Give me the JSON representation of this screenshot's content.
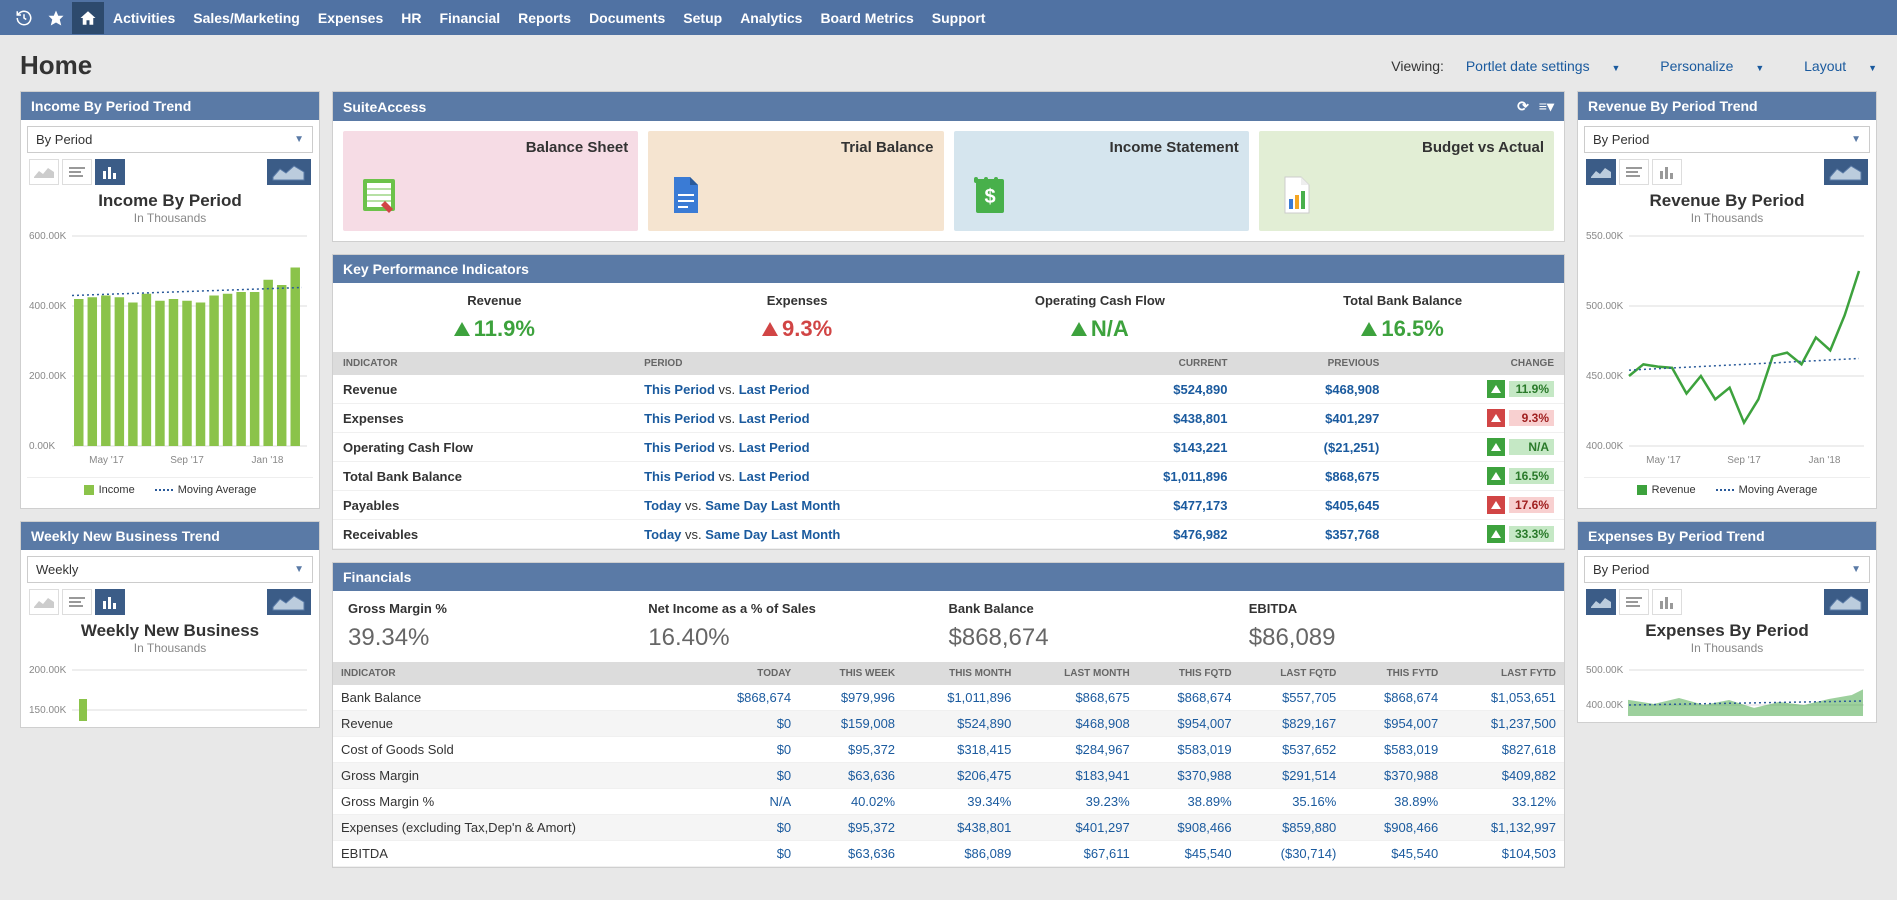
{
  "colors": {
    "topbar": "#5072a3",
    "header": "#5a7aa6",
    "link": "#1a5a9e",
    "green": "#3da23d",
    "red": "#d14545",
    "green_light": "#c5e8c5",
    "red_light": "#f8d0d0"
  },
  "topbar": {
    "menu": [
      "Activities",
      "Sales/Marketing",
      "Expenses",
      "HR",
      "Financial",
      "Reports",
      "Documents",
      "Setup",
      "Analytics",
      "Board Metrics",
      "Support"
    ]
  },
  "page": {
    "title": "Home",
    "viewing_label": "Viewing:",
    "viewing_value": "Portlet date settings",
    "personalize": "Personalize",
    "layout": "Layout"
  },
  "income": {
    "header": "Income By Period Trend",
    "dropdown": "By Period",
    "chart_title": "Income By Period",
    "chart_sub": "In Thousands",
    "y_tick": [
      "600.00K",
      "400.00K",
      "200.00K",
      "0.00K"
    ],
    "x_tick": [
      "May '17",
      "Sep '17",
      "Jan '18"
    ],
    "bars": [
      420,
      425,
      430,
      425,
      410,
      435,
      415,
      420,
      415,
      410,
      430,
      435,
      440,
      440,
      475,
      460,
      510
    ],
    "bar_color": "#8bc34a",
    "ma_color": "#2a5a9a",
    "ymax": 600,
    "legend": [
      {
        "type": "sq",
        "color": "#8bc34a",
        "label": "Income"
      },
      {
        "type": "line",
        "color": "#2a5a9a",
        "label": "Moving Average"
      }
    ]
  },
  "weekly": {
    "header": "Weekly New Business Trend",
    "dropdown": "Weekly",
    "chart_title": "Weekly New Business",
    "chart_sub": "In Thousands",
    "y_tick": [
      "200.00K",
      "150.00K"
    ]
  },
  "suite": {
    "header": "SuiteAccess",
    "tiles": [
      {
        "label": "Balance Sheet",
        "bg": "#f6dce5",
        "icon_bg": "#6cc24a",
        "icon_type": "sheet"
      },
      {
        "label": "Trial Balance",
        "bg": "#f5e4d0",
        "icon_bg": "#3a7bd5",
        "icon_type": "doc"
      },
      {
        "label": "Income Statement",
        "bg": "#d5e5ee",
        "icon_bg": "#48b04b",
        "icon_type": "dollar"
      },
      {
        "label": "Budget vs Actual",
        "bg": "#e2eed5",
        "icon_bg": "#fff",
        "icon_type": "chart"
      }
    ]
  },
  "kpi": {
    "header": "Key Performance Indicators",
    "summary": [
      {
        "label": "Revenue",
        "value": "11.9%",
        "color": "#3da23d",
        "dir": "up"
      },
      {
        "label": "Expenses",
        "value": "9.3%",
        "color": "#d14545",
        "dir": "up"
      },
      {
        "label": "Operating Cash Flow",
        "value": "N/A",
        "color": "#3da23d",
        "dir": "up"
      },
      {
        "label": "Total Bank Balance",
        "value": "16.5%",
        "color": "#3da23d",
        "dir": "up"
      }
    ],
    "cols": [
      "INDICATOR",
      "PERIOD",
      "CURRENT",
      "PREVIOUS",
      "CHANGE"
    ],
    "rows": [
      {
        "ind": "Revenue",
        "p1": "This Period",
        "p2": "Last Period",
        "cur": "$524,890",
        "prev": "$468,908",
        "chg": "11.9%",
        "good": true
      },
      {
        "ind": "Expenses",
        "p1": "This Period",
        "p2": "Last Period",
        "cur": "$438,801",
        "prev": "$401,297",
        "chg": "9.3%",
        "good": false
      },
      {
        "ind": "Operating Cash Flow",
        "p1": "This Period",
        "p2": "Last Period",
        "cur": "$143,221",
        "prev": "($21,251)",
        "chg": "N/A",
        "good": true
      },
      {
        "ind": "Total Bank Balance",
        "p1": "This Period",
        "p2": "Last Period",
        "cur": "$1,011,896",
        "prev": "$868,675",
        "chg": "16.5%",
        "good": true
      },
      {
        "ind": "Payables",
        "p1": "Today",
        "p2": "Same Day Last Month",
        "cur": "$477,173",
        "prev": "$405,645",
        "chg": "17.6%",
        "good": false
      },
      {
        "ind": "Receivables",
        "p1": "Today",
        "p2": "Same Day Last Month",
        "cur": "$476,982",
        "prev": "$357,768",
        "chg": "33.3%",
        "good": true
      }
    ]
  },
  "fin": {
    "header": "Financials",
    "summary": [
      {
        "label": "Gross Margin %",
        "value": "39.34%"
      },
      {
        "label": "Net Income as a % of Sales",
        "value": "16.40%"
      },
      {
        "label": "Bank Balance",
        "value": "$868,674"
      },
      {
        "label": "EBITDA",
        "value": "$86,089"
      }
    ],
    "cols": [
      "INDICATOR",
      "TODAY",
      "THIS WEEK",
      "THIS MONTH",
      "LAST MONTH",
      "THIS FQTD",
      "LAST FQTD",
      "THIS FYTD",
      "LAST FYTD"
    ],
    "rows": [
      [
        "Bank Balance",
        "$868,674",
        "$979,996",
        "$1,011,896",
        "$868,675",
        "$868,674",
        "$557,705",
        "$868,674",
        "$1,053,651"
      ],
      [
        "Revenue",
        "$0",
        "$159,008",
        "$524,890",
        "$468,908",
        "$954,007",
        "$829,167",
        "$954,007",
        "$1,237,500"
      ],
      [
        "Cost of Goods Sold",
        "$0",
        "$95,372",
        "$318,415",
        "$284,967",
        "$583,019",
        "$537,652",
        "$583,019",
        "$827,618"
      ],
      [
        "Gross Margin",
        "$0",
        "$63,636",
        "$206,475",
        "$183,941",
        "$370,988",
        "$291,514",
        "$370,988",
        "$409,882"
      ],
      [
        "Gross Margin %",
        "N/A",
        "40.02%",
        "39.34%",
        "39.23%",
        "38.89%",
        "35.16%",
        "38.89%",
        "33.12%"
      ],
      [
        "Expenses (excluding Tax,Dep'n & Amort)",
        "$0",
        "$95,372",
        "$438,801",
        "$401,297",
        "$908,466",
        "$859,880",
        "$908,466",
        "$1,132,997"
      ],
      [
        "EBITDA",
        "$0",
        "$63,636",
        "$86,089",
        "$67,611",
        "$45,540",
        "($30,714)",
        "$45,540",
        "$104,503"
      ]
    ]
  },
  "revenue": {
    "header": "Revenue By Period Trend",
    "dropdown": "By Period",
    "chart_title": "Revenue By Period",
    "chart_sub": "In Thousands",
    "y_tick": [
      "550.00K",
      "500.00K",
      "450.00K",
      "400.00K"
    ],
    "x_tick": [
      "May '17",
      "Sep '17",
      "Jan '18"
    ],
    "line_color": "#3da23d",
    "ma_color": "#2a5a9a",
    "ymin": 380,
    "ymax": 560,
    "points": [
      440,
      450,
      448,
      447,
      425,
      440,
      420,
      430,
      400,
      420,
      457,
      460,
      450,
      473,
      462,
      492,
      530
    ],
    "legend": [
      {
        "type": "sq",
        "color": "#3da23d",
        "label": "Revenue"
      },
      {
        "type": "line",
        "color": "#2a5a9a",
        "label": "Moving Average"
      }
    ]
  },
  "expenses": {
    "header": "Expenses By Period Trend",
    "dropdown": "By Period",
    "chart_title": "Expenses By Period",
    "chart_sub": "In Thousands",
    "y_tick": [
      "500.00K",
      "400.00K"
    ],
    "area_color": "#3da23d"
  }
}
